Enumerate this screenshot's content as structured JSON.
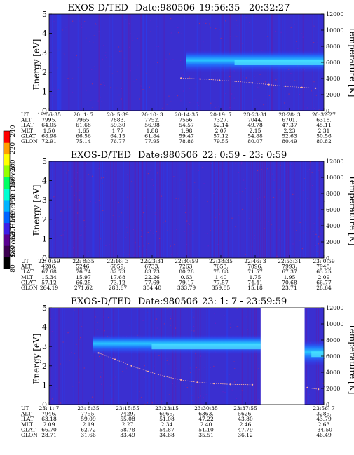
{
  "colorbar": {
    "label": "Second Harmonic Current",
    "ticks": [
      "80",
      "100",
      "120",
      "140",
      "160",
      "180",
      "200",
      "220",
      "240"
    ],
    "colors": [
      "#000000",
      "#3c0050",
      "#5a0090",
      "#3c1ee6",
      "#0064ff",
      "#00b4ff",
      "#00ffd2",
      "#00ff64",
      "#96ff00",
      "#ffff00",
      "#ffa000",
      "#ff0000"
    ]
  },
  "chart_data": [
    {
      "type": "heatmap",
      "title": "EXOS-D/TED",
      "date": "Date:980506",
      "time_range": "19:56:35 - 20:32:27",
      "ylabel": "Energy [eV]",
      "ylabel_right": "Temperature [K]",
      "ylim": [
        0,
        5
      ],
      "ylim_right": [
        0,
        12000
      ],
      "yticks": [
        "0",
        "1",
        "2",
        "3",
        "4",
        "5"
      ],
      "yticks_right": [
        "0",
        "2000",
        "4000",
        "6000",
        "8000",
        "10000",
        "12000"
      ],
      "row_labels": [
        "UT",
        "ALT",
        "ILAT",
        "MLT",
        "GLAT",
        "GLON"
      ],
      "columns": [
        [
          "19:56:35",
          "7995.",
          "64.05",
          "1.50",
          "68.98",
          "72.91"
        ],
        [
          "20: 1: 7",
          "7965.",
          "61.68",
          "1.65",
          "66.56",
          "75.14"
        ],
        [
          "20: 5:39",
          "7883.",
          "59.30",
          "1.77",
          "64.15",
          "76.77"
        ],
        [
          "20:10: 3",
          "7752.",
          "56.98",
          "1.88",
          "61.84",
          "77.95"
        ],
        [
          "20:14:35",
          "7566.",
          "54.57",
          "1.98",
          "59.47",
          "78.86"
        ],
        [
          "20:19: 7",
          "7327.",
          "52.14",
          "2.07",
          "57.12",
          "79.55"
        ],
        [
          "20:23:31",
          "7044.",
          "49.78",
          "2.15",
          "54.88",
          "80.07"
        ],
        [
          "20:28: 3",
          "6701.",
          "47.37",
          "2.23",
          "52.63",
          "80.49"
        ],
        [
          "20:32:27",
          "6318.",
          "45.11",
          "2.31",
          "50.56",
          "80.82"
        ]
      ],
      "band": {
        "x_start": 0.5,
        "x_end": 1.0,
        "e_low": 2.0,
        "e_high": 3.1,
        "peak": 2.5
      },
      "temperature_trace": [
        [
          0.48,
          4050
        ],
        [
          0.55,
          3950
        ],
        [
          0.62,
          3800
        ],
        [
          0.68,
          3650
        ],
        [
          0.74,
          3450
        ],
        [
          0.8,
          3250
        ],
        [
          0.86,
          3050
        ],
        [
          0.92,
          2900
        ],
        [
          0.97,
          2800
        ]
      ]
    },
    {
      "type": "heatmap",
      "title": "EXOS-D/TED",
      "date": "Date:980506",
      "time_range": "22: 0:59 - 23: 0:59",
      "ylabel": "Energy [eV]",
      "ylabel_right": "Temperature [K]",
      "ylim": [
        0,
        5
      ],
      "ylim_right": [
        0,
        12000
      ],
      "yticks": [
        "0",
        "1",
        "2",
        "3",
        "4",
        "5"
      ],
      "yticks_right": [
        "0",
        "2000",
        "4000",
        "6000",
        "8000",
        "10000",
        "12000"
      ],
      "row_labels": [
        "UT",
        "ALT",
        "ILAT",
        "MLT",
        "GLAT",
        "GLON"
      ],
      "columns": [
        [
          "22: 0:59",
          "4286.",
          "67.68",
          "15.34",
          "57.12",
          "264.19"
        ],
        [
          "22: 8:35",
          "5246.",
          "76.74",
          "15.97",
          "66.25",
          "271.62"
        ],
        [
          "22:16: 3",
          "6059.",
          "82.73",
          "17.68",
          "73.12",
          "283.67"
        ],
        [
          "22:23:31",
          "6733.",
          "83.73",
          "22.26",
          "77.69",
          "304.40"
        ],
        [
          "22:30:59",
          "7263.",
          "80.28",
          "0.63",
          "79.17",
          "333.79"
        ],
        [
          "22:38:35",
          "7653.",
          "75.88",
          "1.40",
          "77.57",
          "359.85"
        ],
        [
          "22:46: 3",
          "7896.",
          "71.57",
          "1.75",
          "74.41",
          "15.18"
        ],
        [
          "22:53:31",
          "7993.",
          "67.37",
          "1.95",
          "70.68",
          "23.71"
        ],
        [
          "23: 0:59",
          "7948.",
          "63.25",
          "2.09",
          "66.77",
          "28.64"
        ]
      ],
      "band": null,
      "temperature_trace": []
    },
    {
      "type": "heatmap",
      "title": "EXOS-D/TED",
      "date": "Date:980506",
      "time_range": "23: 1: 7 - 23:59:59",
      "ylabel": "Energy [eV]",
      "ylabel_right": "Temperature [K]",
      "ylim": [
        0,
        5
      ],
      "ylim_right": [
        0,
        12000
      ],
      "yticks": [
        "0",
        "1",
        "2",
        "3",
        "4",
        "5"
      ],
      "yticks_right": [
        "0",
        "2000",
        "4000",
        "6000",
        "8000",
        "10000",
        "12000"
      ],
      "row_labels": [
        "UT",
        "ALT",
        "ILAT",
        "MLT",
        "GLAT",
        "GLON"
      ],
      "columns": [
        [
          "23: 1: 7",
          "7946.",
          "63.18",
          "2.09",
          "66.70",
          "28.71"
        ],
        [
          "23: 8:35",
          "7755.",
          "59.09",
          "2.19",
          "62.72",
          "31.66"
        ],
        [
          "23:15:55",
          "7429.",
          "55.08",
          "2.27",
          "58.78",
          "33.49"
        ],
        [
          "23:23:15",
          "6965.",
          "51.08",
          "2.34",
          "54.87",
          "34.68"
        ],
        [
          "23:30:35",
          "6363.",
          "47.22",
          "2.40",
          "51.10",
          "35.51"
        ],
        [
          "23:37:55",
          "5626.",
          "43.80",
          "2.46",
          "47.79",
          "36.12"
        ],
        [
          "",
          "",
          "",
          "",
          "",
          ""
        ],
        [
          "23:56: 7",
          "3285.",
          "43.79",
          "2.63",
          "-34.50",
          "46.49"
        ]
      ],
      "band": {
        "x_start": 0.16,
        "x_end": 0.77,
        "e_low": 2.6,
        "e_high": 3.6,
        "peak": 3.0
      },
      "gap": [
        0.77,
        0.93
      ],
      "right_band": {
        "x_start": 0.93,
        "x_end": 1.0,
        "e_low": 2.0,
        "e_high": 3.3,
        "peak": 2.6
      },
      "temperature_trace": [
        [
          0.18,
          6400
        ],
        [
          0.24,
          5600
        ],
        [
          0.3,
          4800
        ],
        [
          0.36,
          4100
        ],
        [
          0.42,
          3500
        ],
        [
          0.48,
          3050
        ],
        [
          0.54,
          2750
        ],
        [
          0.6,
          2600
        ],
        [
          0.66,
          2500
        ],
        [
          0.74,
          2450
        ],
        [
          0.94,
          2100
        ],
        [
          0.98,
          1900
        ]
      ]
    }
  ]
}
